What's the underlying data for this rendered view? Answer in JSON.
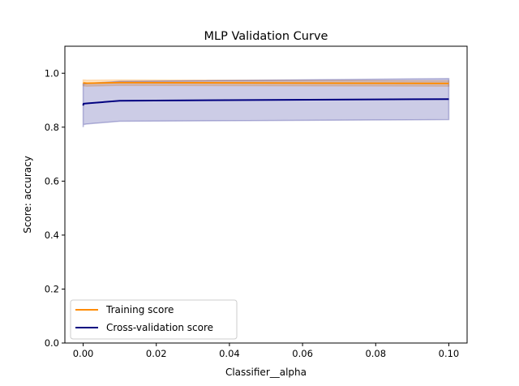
{
  "chart_data": {
    "type": "line",
    "title": "MLP Validation Curve",
    "xlabel": "Classifier__alpha",
    "ylabel": "Score: accuracy",
    "xlim": [
      -0.005,
      0.105
    ],
    "ylim": [
      0.0,
      1.1
    ],
    "xticks": [
      0.0,
      0.02,
      0.04,
      0.06,
      0.08,
      0.1
    ],
    "xtick_labels": [
      "0.00",
      "0.02",
      "0.04",
      "0.06",
      "0.08",
      "0.10"
    ],
    "yticks": [
      0.0,
      0.2,
      0.4,
      0.6,
      0.8,
      1.0
    ],
    "ytick_labels": [
      "0.0",
      "0.2",
      "0.4",
      "0.6",
      "0.8",
      "1.0"
    ],
    "grid": false,
    "legend_position": "lower-left",
    "series": [
      {
        "name": "Training score",
        "color": "#ff8c00",
        "x": [
          0.0,
          0.0001,
          0.001,
          0.01,
          0.1
        ],
        "y": [
          0.965,
          0.964,
          0.963,
          0.965,
          0.962
        ],
        "band_low": [
          0.955,
          0.953,
          0.952,
          0.955,
          0.952
        ],
        "band_high": [
          0.975,
          0.975,
          0.974,
          0.975,
          0.972
        ]
      },
      {
        "name": "Cross-validation score",
        "color": "#000080",
        "x": [
          0.0,
          0.0001,
          0.001,
          0.01,
          0.1
        ],
        "y": [
          0.88,
          0.887,
          0.888,
          0.898,
          0.904
        ],
        "band_low": [
          0.8,
          0.81,
          0.812,
          0.822,
          0.828
        ],
        "band_high": [
          0.96,
          0.96,
          0.962,
          0.97,
          0.98
        ]
      }
    ]
  }
}
